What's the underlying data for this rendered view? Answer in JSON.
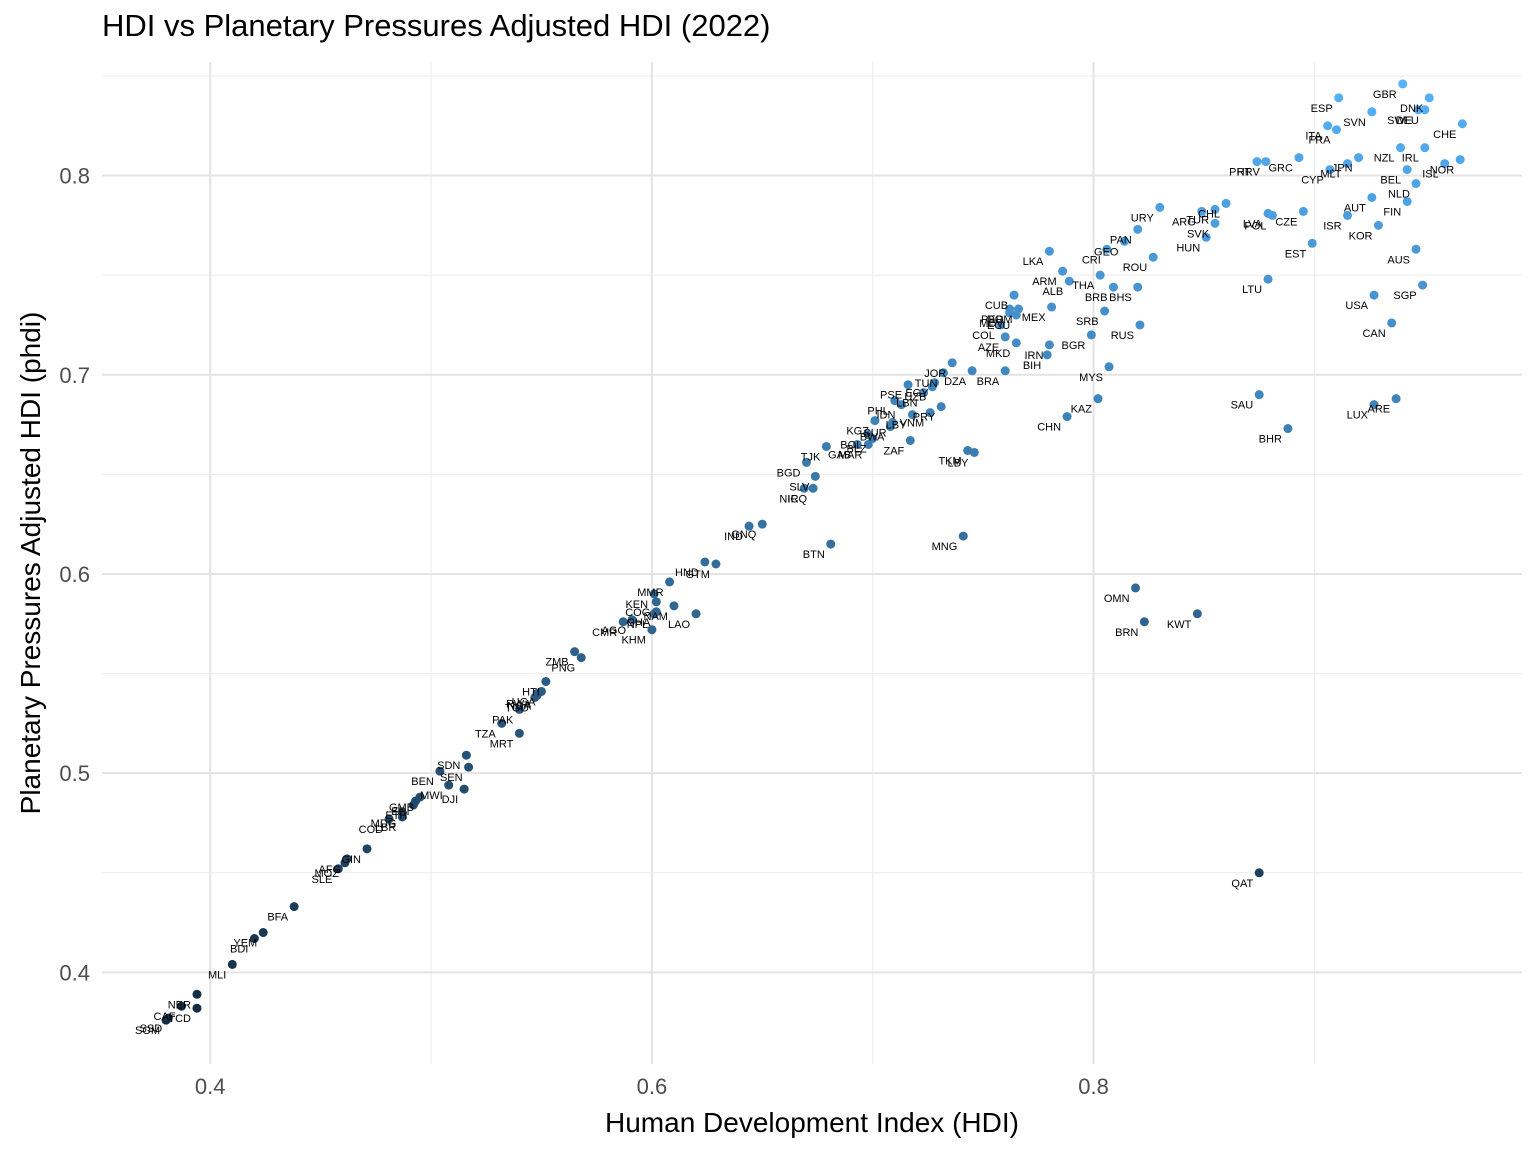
{
  "chart_data": {
    "type": "scatter",
    "title": "HDI vs Planetary Pressures Adjusted HDI (2022)",
    "xlabel": "Human Development Index (HDI)",
    "ylabel": "Planetary Pressures Adjusted HDI (phdi)",
    "xlim": [
      0.351,
      0.994
    ],
    "ylim": [
      0.354,
      0.857
    ],
    "x_ticks": [
      0.4,
      0.6,
      0.8
    ],
    "y_ticks": [
      0.4,
      0.5,
      0.6,
      0.7,
      0.8
    ],
    "grid": true,
    "color_scale": {
      "low": "#132B43",
      "high": "#56B1F7",
      "mapped_to": "phdi"
    },
    "points": [
      {
        "label": "GBR",
        "x": 0.94,
        "y": 0.846
      },
      {
        "label": "ESP",
        "x": 0.911,
        "y": 0.839
      },
      {
        "label": "DNK",
        "x": 0.952,
        "y": 0.839
      },
      {
        "label": "SWE",
        "x": 0.947,
        "y": 0.833
      },
      {
        "label": "DEU",
        "x": 0.95,
        "y": 0.833
      },
      {
        "label": "SVN",
        "x": 0.926,
        "y": 0.832
      },
      {
        "label": "CHE",
        "x": 0.967,
        "y": 0.826
      },
      {
        "label": "ITA",
        "x": 0.906,
        "y": 0.825
      },
      {
        "label": "FRA",
        "x": 0.91,
        "y": 0.823
      },
      {
        "label": "NZL",
        "x": 0.939,
        "y": 0.814
      },
      {
        "label": "IRL",
        "x": 0.95,
        "y": 0.814
      },
      {
        "label": "PRT",
        "x": 0.874,
        "y": 0.807
      },
      {
        "label": "HRV",
        "x": 0.878,
        "y": 0.807
      },
      {
        "label": "GRC",
        "x": 0.893,
        "y": 0.809
      },
      {
        "label": "MLT",
        "x": 0.915,
        "y": 0.806
      },
      {
        "label": "JPN",
        "x": 0.92,
        "y": 0.809
      },
      {
        "label": "NOR",
        "x": 0.966,
        "y": 0.808
      },
      {
        "label": "ISL",
        "x": 0.959,
        "y": 0.806
      },
      {
        "label": "CYP",
        "x": 0.907,
        "y": 0.803
      },
      {
        "label": "BEL",
        "x": 0.942,
        "y": 0.803
      },
      {
        "label": "NLD",
        "x": 0.946,
        "y": 0.796
      },
      {
        "label": "AUT",
        "x": 0.926,
        "y": 0.789
      },
      {
        "label": "FIN",
        "x": 0.942,
        "y": 0.787
      },
      {
        "label": "URY",
        "x": 0.83,
        "y": 0.784
      },
      {
        "label": "CHL",
        "x": 0.86,
        "y": 0.786
      },
      {
        "label": "ARG",
        "x": 0.849,
        "y": 0.782
      },
      {
        "label": "TUR",
        "x": 0.855,
        "y": 0.783
      },
      {
        "label": "LVA",
        "x": 0.879,
        "y": 0.781
      },
      {
        "label": "POL",
        "x": 0.881,
        "y": 0.78
      },
      {
        "label": "CZE",
        "x": 0.895,
        "y": 0.782
      },
      {
        "label": "ISR",
        "x": 0.915,
        "y": 0.78
      },
      {
        "label": "KOR",
        "x": 0.929,
        "y": 0.775
      },
      {
        "label": "SVK",
        "x": 0.855,
        "y": 0.776
      },
      {
        "label": "HUN",
        "x": 0.851,
        "y": 0.769
      },
      {
        "label": "PAN",
        "x": 0.82,
        "y": 0.773
      },
      {
        "label": "GEO",
        "x": 0.814,
        "y": 0.767
      },
      {
        "label": "EST",
        "x": 0.899,
        "y": 0.766
      },
      {
        "label": "AUS",
        "x": 0.946,
        "y": 0.763
      },
      {
        "label": "CRI",
        "x": 0.806,
        "y": 0.763
      },
      {
        "label": "ROU",
        "x": 0.827,
        "y": 0.759
      },
      {
        "label": "LKA",
        "x": 0.78,
        "y": 0.762
      },
      {
        "label": "ARM",
        "x": 0.786,
        "y": 0.752
      },
      {
        "label": "THA",
        "x": 0.803,
        "y": 0.75
      },
      {
        "label": "ALB",
        "x": 0.789,
        "y": 0.747
      },
      {
        "label": "LTU",
        "x": 0.879,
        "y": 0.748
      },
      {
        "label": "BHS",
        "x": 0.82,
        "y": 0.744
      },
      {
        "label": "USA",
        "x": 0.927,
        "y": 0.74
      },
      {
        "label": "SGP",
        "x": 0.949,
        "y": 0.745
      },
      {
        "label": "CUB",
        "x": 0.764,
        "y": 0.74
      },
      {
        "label": "MEX",
        "x": 0.781,
        "y": 0.734
      },
      {
        "label": "SRB",
        "x": 0.805,
        "y": 0.732
      },
      {
        "label": "PER",
        "x": 0.762,
        "y": 0.733
      },
      {
        "label": "ECU",
        "x": 0.765,
        "y": 0.73
      },
      {
        "label": "MDV",
        "x": 0.762,
        "y": 0.731
      },
      {
        "label": "DOM",
        "x": 0.766,
        "y": 0.733
      },
      {
        "label": "BRB",
        "x": 0.809,
        "y": 0.744
      },
      {
        "label": "CAN",
        "x": 0.935,
        "y": 0.726
      },
      {
        "label": "RUS",
        "x": 0.821,
        "y": 0.725
      },
      {
        "label": "COL",
        "x": 0.758,
        "y": 0.725
      },
      {
        "label": "AZE",
        "x": 0.76,
        "y": 0.719
      },
      {
        "label": "BGR",
        "x": 0.799,
        "y": 0.72
      },
      {
        "label": "MKD",
        "x": 0.765,
        "y": 0.716
      },
      {
        "label": "IRN",
        "x": 0.78,
        "y": 0.715
      },
      {
        "label": "BIH",
        "x": 0.779,
        "y": 0.71
      },
      {
        "label": "JOR",
        "x": 0.736,
        "y": 0.706
      },
      {
        "label": "MYS",
        "x": 0.807,
        "y": 0.704
      },
      {
        "label": "DZA",
        "x": 0.745,
        "y": 0.702
      },
      {
        "label": "TUN",
        "x": 0.732,
        "y": 0.701
      },
      {
        "label": "BRA",
        "x": 0.76,
        "y": 0.702
      },
      {
        "label": "PSE",
        "x": 0.716,
        "y": 0.695
      },
      {
        "label": "LBN",
        "x": 0.723,
        "y": 0.691
      },
      {
        "label": "EGY",
        "x": 0.728,
        "y": 0.696
      },
      {
        "label": "UZB",
        "x": 0.727,
        "y": 0.694
      },
      {
        "label": "SAU",
        "x": 0.875,
        "y": 0.69
      },
      {
        "label": "ARE",
        "x": 0.937,
        "y": 0.688
      },
      {
        "label": "LUX",
        "x": 0.927,
        "y": 0.685
      },
      {
        "label": "KAZ",
        "x": 0.802,
        "y": 0.688
      },
      {
        "label": "PRY",
        "x": 0.731,
        "y": 0.684
      },
      {
        "label": "IDN",
        "x": 0.713,
        "y": 0.685
      },
      {
        "label": "PHL",
        "x": 0.71,
        "y": 0.687
      },
      {
        "label": "VNM",
        "x": 0.726,
        "y": 0.681
      },
      {
        "label": "LBY",
        "x": 0.718,
        "y": 0.68
      },
      {
        "label": "SUR",
        "x": 0.709,
        "y": 0.676
      },
      {
        "label": "KGZ",
        "x": 0.701,
        "y": 0.677
      },
      {
        "label": "BOL",
        "x": 0.698,
        "y": 0.67
      },
      {
        "label": "BWA",
        "x": 0.708,
        "y": 0.674
      },
      {
        "label": "CHN",
        "x": 0.788,
        "y": 0.679
      },
      {
        "label": "BHR",
        "x": 0.888,
        "y": 0.673
      },
      {
        "label": "MAR",
        "x": 0.698,
        "y": 0.665
      },
      {
        "label": "GAB",
        "x": 0.693,
        "y": 0.665
      },
      {
        "label": "ZAF",
        "x": 0.717,
        "y": 0.667
      },
      {
        "label": "BLZ",
        "x": 0.7,
        "y": 0.668
      },
      {
        "label": "TKM",
        "x": 0.743,
        "y": 0.662
      },
      {
        "label": "LBY2",
        "x": 0.746,
        "y": 0.661
      },
      {
        "label": "TJK",
        "x": 0.679,
        "y": 0.664
      },
      {
        "label": "BGD",
        "x": 0.67,
        "y": 0.656
      },
      {
        "label": "SLV",
        "x": 0.674,
        "y": 0.649
      },
      {
        "label": "IRQ",
        "x": 0.673,
        "y": 0.643
      },
      {
        "label": "NIC",
        "x": 0.669,
        "y": 0.643
      },
      {
        "label": "IND",
        "x": 0.644,
        "y": 0.624
      },
      {
        "label": "GNQ",
        "x": 0.65,
        "y": 0.625
      },
      {
        "label": "BTN",
        "x": 0.681,
        "y": 0.615
      },
      {
        "label": "MNG",
        "x": 0.741,
        "y": 0.619
      },
      {
        "label": "HND",
        "x": 0.624,
        "y": 0.606
      },
      {
        "label": "GTM",
        "x": 0.629,
        "y": 0.605
      },
      {
        "label": "MMR",
        "x": 0.608,
        "y": 0.596
      },
      {
        "label": "OMN",
        "x": 0.819,
        "y": 0.593
      },
      {
        "label": "KEN",
        "x": 0.601,
        "y": 0.59
      },
      {
        "label": "COG",
        "x": 0.602,
        "y": 0.586
      },
      {
        "label": "NAM",
        "x": 0.61,
        "y": 0.584
      },
      {
        "label": "GHA",
        "x": 0.602,
        "y": 0.581
      },
      {
        "label": "LAO",
        "x": 0.62,
        "y": 0.58
      },
      {
        "label": "KWT",
        "x": 0.847,
        "y": 0.58
      },
      {
        "label": "BRN",
        "x": 0.823,
        "y": 0.576
      },
      {
        "label": "AGO",
        "x": 0.591,
        "y": 0.577
      },
      {
        "label": "NPL",
        "x": 0.601,
        "y": 0.58
      },
      {
        "label": "CMR",
        "x": 0.587,
        "y": 0.576
      },
      {
        "label": "KHM",
        "x": 0.6,
        "y": 0.572
      },
      {
        "label": "ZMB",
        "x": 0.565,
        "y": 0.561
      },
      {
        "label": "PNG",
        "x": 0.568,
        "y": 0.558
      },
      {
        "label": "HTI",
        "x": 0.552,
        "y": 0.546
      },
      {
        "label": "UGA",
        "x": 0.55,
        "y": 0.541
      },
      {
        "label": "RWA",
        "x": 0.548,
        "y": 0.54
      },
      {
        "label": "NGA",
        "x": 0.548,
        "y": 0.539
      },
      {
        "label": "TGO",
        "x": 0.547,
        "y": 0.538
      },
      {
        "label": "PAK",
        "x": 0.54,
        "y": 0.532
      },
      {
        "label": "TZA",
        "x": 0.532,
        "y": 0.525
      },
      {
        "label": "MRT",
        "x": 0.54,
        "y": 0.52
      },
      {
        "label": "SDN",
        "x": 0.516,
        "y": 0.509
      },
      {
        "label": "BEN",
        "x": 0.504,
        "y": 0.501
      },
      {
        "label": "MWI",
        "x": 0.508,
        "y": 0.494
      },
      {
        "label": "DJI",
        "x": 0.515,
        "y": 0.492
      },
      {
        "label": "GMB",
        "x": 0.495,
        "y": 0.488
      },
      {
        "label": "ERI",
        "x": 0.493,
        "y": 0.486
      },
      {
        "label": "ETH",
        "x": 0.492,
        "y": 0.484
      },
      {
        "label": "MDG",
        "x": 0.487,
        "y": 0.48
      },
      {
        "label": "LBR",
        "x": 0.487,
        "y": 0.478
      },
      {
        "label": "SEN",
        "x": 0.517,
        "y": 0.503
      },
      {
        "label": "COD",
        "x": 0.481,
        "y": 0.477
      },
      {
        "label": "GIN",
        "x": 0.471,
        "y": 0.462
      },
      {
        "label": "AFG",
        "x": 0.462,
        "y": 0.457
      },
      {
        "label": "MOZ",
        "x": 0.461,
        "y": 0.455
      },
      {
        "label": "SLE",
        "x": 0.458,
        "y": 0.452
      },
      {
        "label": "QAT",
        "x": 0.875,
        "y": 0.45
      },
      {
        "label": "BFA",
        "x": 0.438,
        "y": 0.433
      },
      {
        "label": "YEM",
        "x": 0.424,
        "y": 0.42
      },
      {
        "label": "BDI",
        "x": 0.42,
        "y": 0.417
      },
      {
        "label": "MLI",
        "x": 0.41,
        "y": 0.404
      },
      {
        "label": "NER",
        "x": 0.394,
        "y": 0.389
      },
      {
        "label": "CAF",
        "x": 0.387,
        "y": 0.383
      },
      {
        "label": "TCD",
        "x": 0.394,
        "y": 0.382
      },
      {
        "label": "SSD",
        "x": 0.381,
        "y": 0.377
      },
      {
        "label": "SOM",
        "x": 0.38,
        "y": 0.376
      }
    ]
  }
}
